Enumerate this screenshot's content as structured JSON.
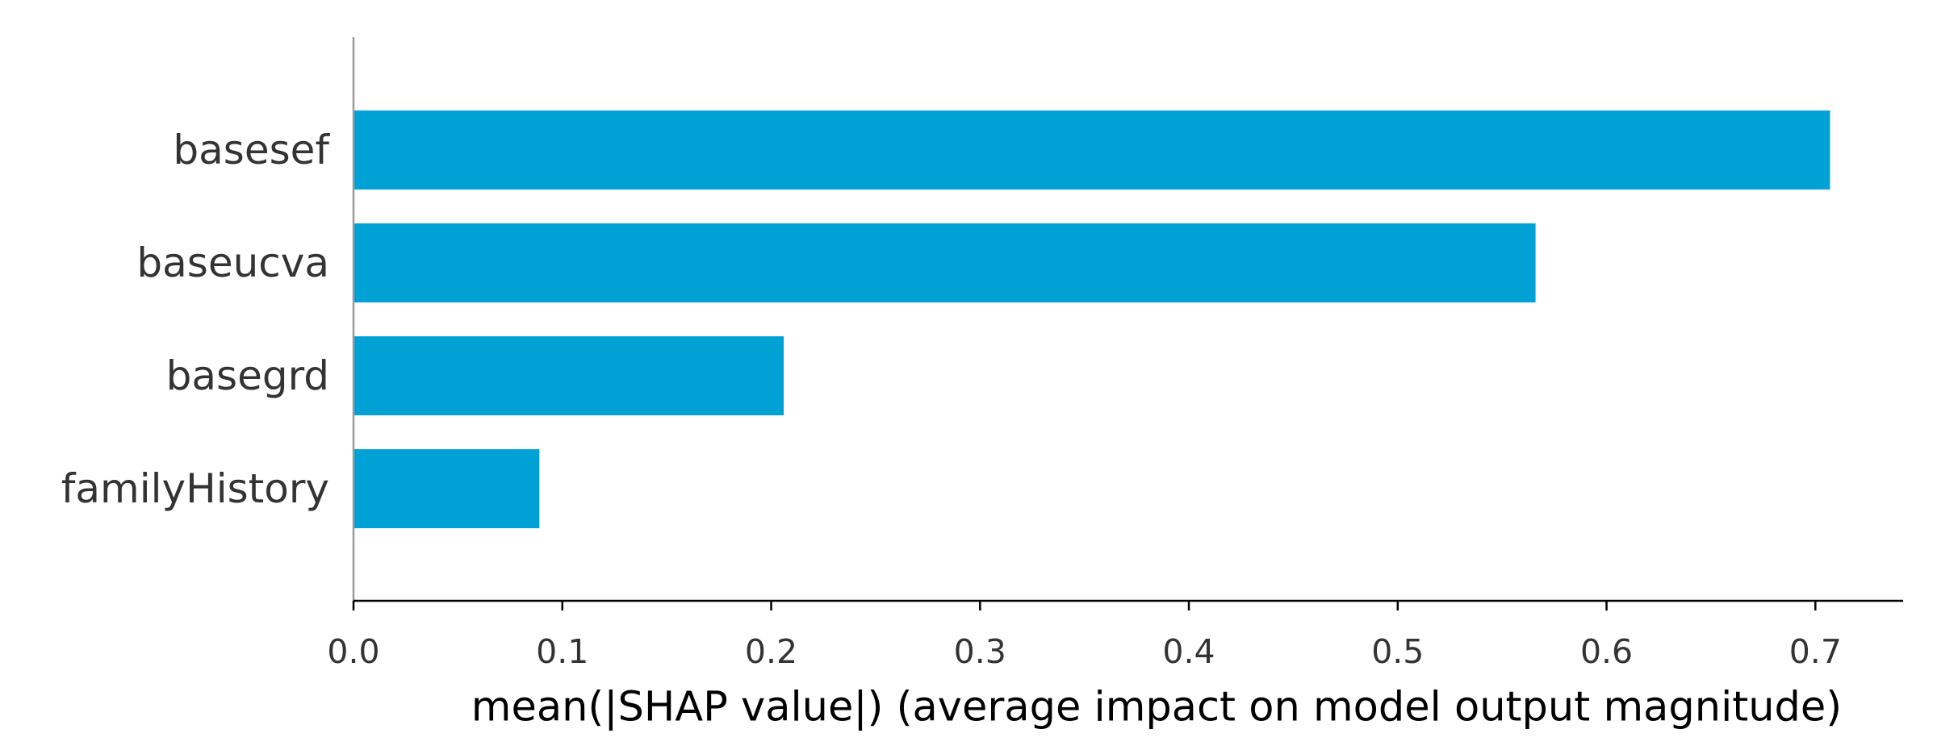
{
  "chart_data": {
    "type": "bar",
    "orientation": "horizontal",
    "categories": [
      "basesef",
      "baseucva",
      "basegrd",
      "familyHistory"
    ],
    "values": [
      0.707,
      0.566,
      0.206,
      0.089
    ],
    "title": "",
    "xlabel": "mean(|SHAP value|) (average impact on model output magnitude)",
    "ylabel": "",
    "xlim": [
      0.0,
      0.742
    ],
    "xticks": [
      0.0,
      0.1,
      0.2,
      0.3,
      0.4,
      0.5,
      0.6,
      0.7
    ],
    "xtick_labels": [
      "0.0",
      "0.1",
      "0.2",
      "0.3",
      "0.4",
      "0.5",
      "0.6",
      "0.7"
    ],
    "grid": false,
    "legend": "none",
    "bar_color": "#00A1D5",
    "axis_color": "#000000",
    "spine_color": "#999999"
  }
}
